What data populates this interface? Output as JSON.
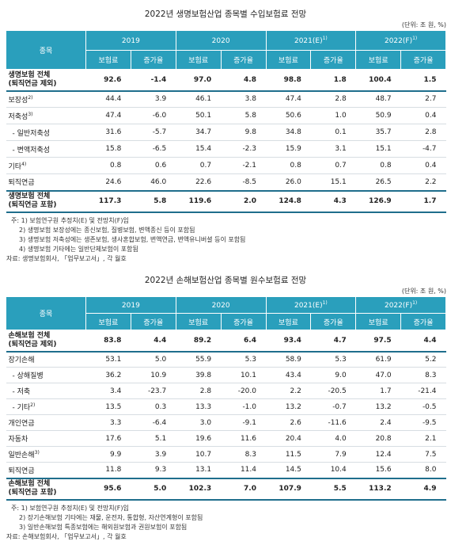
{
  "life": {
    "title": "2022년 생명보험산업 종목별 수입보험료 전망",
    "unit": "(단위: 조 원, %)",
    "stub_header": "종목",
    "years": [
      "2019",
      "2020",
      "2021(E)",
      "2022(F)"
    ],
    "year_sups": [
      "",
      "",
      "1)",
      "1)"
    ],
    "sub_headers": [
      "보험료",
      "증가율"
    ],
    "rows": [
      {
        "label": "생명보험 전체\n(퇴직연금 제외)",
        "sup": "",
        "bold": true,
        "indent": false,
        "values": [
          "92.6",
          "-1.4",
          "97.0",
          "4.8",
          "98.8",
          "1.8",
          "100.4",
          "1.5"
        ]
      },
      {
        "label": "보장성",
        "sup": "2)",
        "bold": false,
        "indent": false,
        "values": [
          "44.4",
          "3.9",
          "46.1",
          "3.8",
          "47.4",
          "2.8",
          "48.7",
          "2.7"
        ]
      },
      {
        "label": "저축성",
        "sup": "3)",
        "bold": false,
        "indent": false,
        "values": [
          "47.4",
          "-6.0",
          "50.1",
          "5.8",
          "50.6",
          "1.0",
          "50.9",
          "0.4"
        ]
      },
      {
        "label": "- 일반저축성",
        "sup": "",
        "bold": false,
        "indent": true,
        "values": [
          "31.6",
          "-5.7",
          "34.7",
          "9.8",
          "34.8",
          "0.1",
          "35.7",
          "2.8"
        ]
      },
      {
        "label": "- 변액저축성",
        "sup": "",
        "bold": false,
        "indent": true,
        "values": [
          "15.8",
          "-6.5",
          "15.4",
          "-2.3",
          "15.9",
          "3.1",
          "15.1",
          "-4.7"
        ]
      },
      {
        "label": "기타",
        "sup": "4)",
        "bold": false,
        "indent": false,
        "values": [
          "0.8",
          "0.6",
          "0.7",
          "-2.1",
          "0.8",
          "0.7",
          "0.8",
          "0.4"
        ]
      },
      {
        "label": "퇴직연금",
        "sup": "",
        "bold": false,
        "indent": false,
        "values": [
          "24.6",
          "46.0",
          "22.6",
          "-8.5",
          "26.0",
          "15.1",
          "26.5",
          "2.2"
        ]
      },
      {
        "label": "생명보험 전체\n(퇴직연금 포함)",
        "sup": "",
        "bold": true,
        "indent": false,
        "values": [
          "117.3",
          "5.8",
          "119.6",
          "2.0",
          "124.8",
          "4.3",
          "126.9",
          "1.7"
        ]
      }
    ],
    "notes": [
      "주: 1) 보험연구원 추정치(E) 및 전망치(F)임",
      "2) 생명보험 보장성에는 종신보험, 질병보험, 변액종신 등이 포함됨",
      "3) 생명보험 저축성에는 생존보험, 생사혼합보험, 변액연금, 변액유니버셜 등이 포함됨",
      "4) 생명보험 기타에는 일반단체보험이 포함됨"
    ],
    "source": "자료: 생명보험회사, 「업무보고서」, 각 월호"
  },
  "nonlife": {
    "title": "2022년 손해보험산업 종목별 원수보험료 전망",
    "unit": "(단위: 조 원, %)",
    "stub_header": "종목",
    "years": [
      "2019",
      "2020",
      "2021(E)",
      "2022(F)"
    ],
    "year_sups": [
      "",
      "",
      "1)",
      "1)"
    ],
    "sub_headers": [
      "보험료",
      "증가율"
    ],
    "rows": [
      {
        "label": "손해보험 전체\n(퇴직연금 제외)",
        "sup": "",
        "bold": true,
        "indent": false,
        "values": [
          "83.8",
          "4.4",
          "89.2",
          "6.4",
          "93.4",
          "4.7",
          "97.5",
          "4.4"
        ]
      },
      {
        "label": "장기손해",
        "sup": "",
        "bold": false,
        "indent": false,
        "values": [
          "53.1",
          "5.0",
          "55.9",
          "5.3",
          "58.9",
          "5.3",
          "61.9",
          "5.2"
        ]
      },
      {
        "label": "- 상해질병",
        "sup": "",
        "bold": false,
        "indent": true,
        "values": [
          "36.2",
          "10.9",
          "39.8",
          "10.1",
          "43.4",
          "9.0",
          "47.0",
          "8.3"
        ]
      },
      {
        "label": "- 저축",
        "sup": "",
        "bold": false,
        "indent": true,
        "values": [
          "3.4",
          "-23.7",
          "2.8",
          "-20.0",
          "2.2",
          "-20.5",
          "1.7",
          "-21.4"
        ]
      },
      {
        "label": "- 기타",
        "sup": "2)",
        "bold": false,
        "indent": true,
        "values": [
          "13.5",
          "0.3",
          "13.3",
          "-1.0",
          "13.2",
          "-0.7",
          "13.2",
          "-0.5"
        ]
      },
      {
        "label": "개인연금",
        "sup": "",
        "bold": false,
        "indent": false,
        "values": [
          "3.3",
          "-6.4",
          "3.0",
          "-9.1",
          "2.6",
          "-11.6",
          "2.4",
          "-9.5"
        ]
      },
      {
        "label": "자동차",
        "sup": "",
        "bold": false,
        "indent": false,
        "values": [
          "17.6",
          "5.1",
          "19.6",
          "11.6",
          "20.4",
          "4.0",
          "20.8",
          "2.1"
        ]
      },
      {
        "label": "일반손해",
        "sup": "3)",
        "bold": false,
        "indent": false,
        "values": [
          "9.9",
          "3.9",
          "10.7",
          "8.3",
          "11.5",
          "7.9",
          "12.4",
          "7.5"
        ]
      },
      {
        "label": "퇴직연금",
        "sup": "",
        "bold": false,
        "indent": false,
        "values": [
          "11.8",
          "9.3",
          "13.1",
          "11.4",
          "14.5",
          "10.4",
          "15.6",
          "8.0"
        ]
      },
      {
        "label": "손해보험 전체\n(퇴직연금 포함)",
        "sup": "",
        "bold": true,
        "indent": false,
        "values": [
          "95.6",
          "5.0",
          "102.3",
          "7.0",
          "107.9",
          "5.5",
          "113.2",
          "4.9"
        ]
      }
    ],
    "notes": [
      "주: 1) 보험연구원 추정치(E) 및 전망치(F)임",
      "2) 장기손해보험 기타에는 재물, 운전자, 통합형, 자산연계형이 포함됨",
      "3) 일반손해보험 특종보험에는 해외원보험과 권원보험이 포함됨"
    ],
    "source": "자료: 손해보험회사, 「업무보고서」, 각 월호"
  }
}
